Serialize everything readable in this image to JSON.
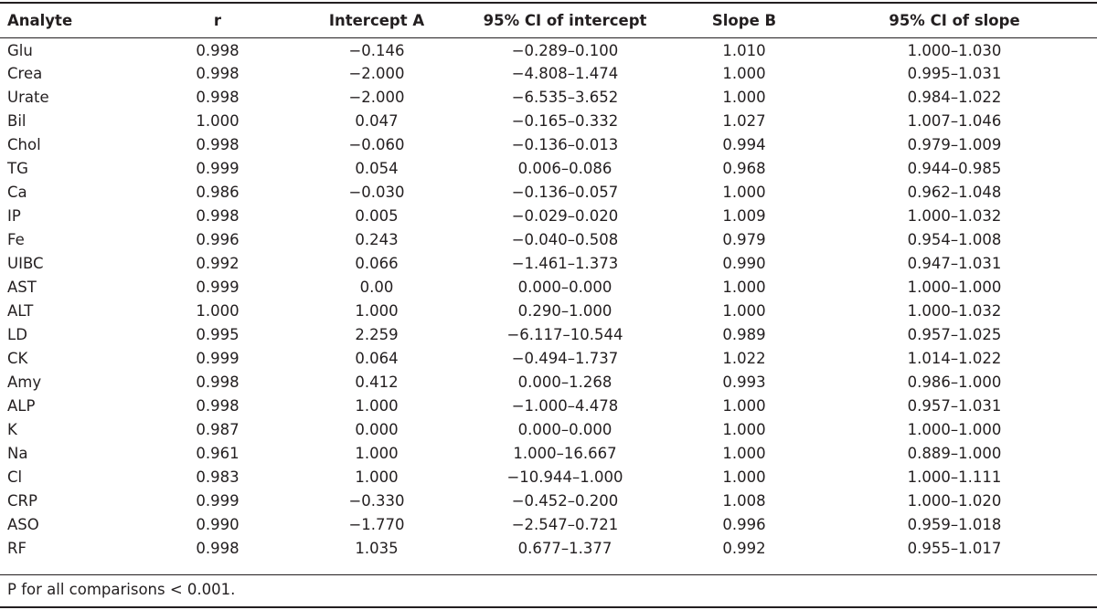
{
  "table": {
    "headers": [
      "Analyte",
      "r",
      "Intercept A",
      "95% CI of intercept",
      "Slope B",
      "95% CI of slope"
    ],
    "rows": [
      [
        "Glu",
        "0.998",
        "−0.146",
        "−0.289–0.100",
        "1.010",
        "1.000–1.030"
      ],
      [
        "Crea",
        "0.998",
        "−2.000",
        "−4.808–1.474",
        "1.000",
        "0.995–1.031"
      ],
      [
        "Urate",
        "0.998",
        "−2.000",
        "−6.535–3.652",
        "1.000",
        "0.984–1.022"
      ],
      [
        "Bil",
        "1.000",
        "0.047",
        "−0.165–0.332",
        "1.027",
        "1.007–1.046"
      ],
      [
        "Chol",
        "0.998",
        "−0.060",
        "−0.136–0.013",
        "0.994",
        "0.979–1.009"
      ],
      [
        "TG",
        "0.999",
        "0.054",
        "0.006–0.086",
        "0.968",
        "0.944–0.985"
      ],
      [
        "Ca",
        "0.986",
        "−0.030",
        "−0.136–0.057",
        "1.000",
        "0.962–1.048"
      ],
      [
        "IP",
        "0.998",
        "0.005",
        "−0.029–0.020",
        "1.009",
        "1.000–1.032"
      ],
      [
        "Fe",
        "0.996",
        "0.243",
        "−0.040–0.508",
        "0.979",
        "0.954–1.008"
      ],
      [
        "UIBC",
        "0.992",
        "0.066",
        "−1.461–1.373",
        "0.990",
        "0.947–1.031"
      ],
      [
        "AST",
        "0.999",
        "0.00",
        "0.000–0.000",
        "1.000",
        "1.000–1.000"
      ],
      [
        "ALT",
        "1.000",
        "1.000",
        "0.290–1.000",
        "1.000",
        "1.000–1.032"
      ],
      [
        "LD",
        "0.995",
        "2.259",
        "−6.117–10.544",
        "0.989",
        "0.957–1.025"
      ],
      [
        "CK",
        "0.999",
        "0.064",
        "−0.494–1.737",
        "1.022",
        "1.014–1.022"
      ],
      [
        "Amy",
        "0.998",
        "0.412",
        "0.000–1.268",
        "0.993",
        "0.986–1.000"
      ],
      [
        "ALP",
        "0.998",
        "1.000",
        "−1.000–4.478",
        "1.000",
        "0.957–1.031"
      ],
      [
        "K",
        "0.987",
        "0.000",
        "0.000–0.000",
        "1.000",
        "1.000–1.000"
      ],
      [
        "Na",
        "0.961",
        "1.000",
        "1.000–16.667",
        "1.000",
        "0.889–1.000"
      ],
      [
        "Cl",
        "0.983",
        "1.000",
        "−10.944–1.000",
        "1.000",
        "1.000–1.111"
      ],
      [
        "CRP",
        "0.999",
        "−0.330",
        "−0.452–0.200",
        "1.008",
        "1.000–1.020"
      ],
      [
        "ASO",
        "0.990",
        "−1.770",
        "−2.547–0.721",
        "0.996",
        "0.959–1.018"
      ],
      [
        "RF",
        "0.998",
        "1.035",
        "0.677–1.377",
        "0.992",
        "0.955–1.017"
      ]
    ]
  },
  "footnote": "P for all comparisons < 0.001."
}
